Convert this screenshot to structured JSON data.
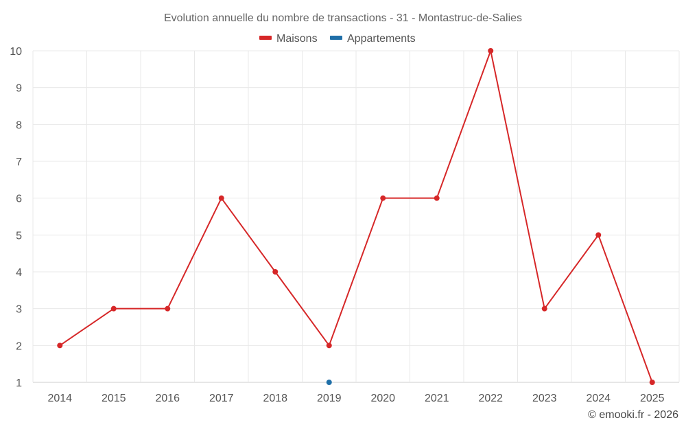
{
  "chart_data": {
    "type": "line",
    "title": "Evolution annuelle du nombre de transactions - 31 - Montastruc-de-Salies",
    "x": [
      "2014",
      "2015",
      "2016",
      "2017",
      "2018",
      "2019",
      "2020",
      "2021",
      "2022",
      "2023",
      "2024",
      "2025"
    ],
    "series": [
      {
        "name": "Maisons",
        "color": "#d62728",
        "values": [
          2,
          3,
          3,
          6,
          4,
          2,
          6,
          6,
          10,
          3,
          5,
          1
        ]
      },
      {
        "name": "Appartements",
        "color": "#1f6fa8",
        "values": [
          null,
          null,
          null,
          null,
          null,
          1,
          null,
          null,
          null,
          null,
          null,
          null
        ]
      }
    ],
    "yticks": [
      "1",
      "2",
      "3",
      "4",
      "5",
      "6",
      "7",
      "8",
      "9",
      "10"
    ],
    "ylim": [
      1,
      10
    ],
    "grid": true,
    "legend_position": "top-center",
    "xlabel": "",
    "ylabel": ""
  },
  "credit": "© emooki.fr - 2026"
}
